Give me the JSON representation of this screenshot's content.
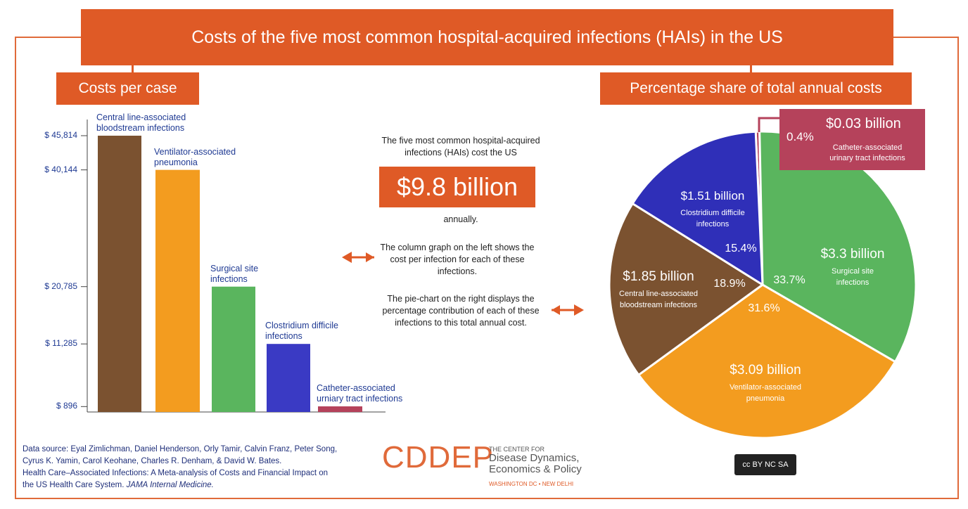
{
  "title": "Costs of the five most common hospital-acquired infections (HAIs) in the US",
  "left_section": "Costs per case",
  "right_section": "Percentage share of total annual costs",
  "middle": {
    "intro": "The five most common hospital-acquired infections (HAIs) cost the US",
    "big_value": "$9.8 billion",
    "annually": "annually.",
    "left_note": "The column graph on the left shows the cost per infection for each of these infections.",
    "right_note": "The pie-chart on the right displays the percentage contribution of each of these infections to this total annual cost."
  },
  "source": {
    "line1": "Data source: Eyal Zimlichman, Daniel Henderson, Orly Tamir, Calvin Franz, Peter Song,",
    "line2": "Cyrus K. Yamin, Carol Keohane, Charles R. Denham, & David W. Bates.",
    "line3": "Health Care–Associated Infections: A Meta-analysis of Costs and Financial Impact on",
    "line4_a": "the US Health Care System. ",
    "line4_b": "JAMA Internal Medicine."
  },
  "logo": {
    "main": "CDDEP",
    "sub1": "THE CENTER FOR",
    "sub2": "Disease Dynamics,",
    "sub3": "Economics & Policy",
    "sub4": "WASHINGTON DC • NEW DELHI"
  },
  "license": "cc BY NC SA",
  "chart_data": [
    {
      "type": "bar",
      "title": "Costs per case",
      "categories": [
        "Central line-associated bloodstream infections",
        "Ventilator-associated pneumonia",
        "Surgical site infections",
        "Clostridium difficile infections",
        "Catheter-associated urniary tract infections"
      ],
      "label_lines": [
        [
          "Central line-associated",
          "bloodstream infections"
        ],
        [
          "Ventilator-associated",
          "pneumonia"
        ],
        [
          "Surgical site",
          "infections"
        ],
        [
          "Clostridium difficile",
          "infections"
        ],
        [
          "Catheter-associated",
          "urniary tract infections"
        ]
      ],
      "values": [
        45814,
        40144,
        20785,
        11285,
        896
      ],
      "tick_labels": [
        "$ 45,814",
        "$ 40,144",
        "$ 20,785",
        "$ 11,285",
        "$ 896"
      ],
      "colors": [
        "#7b5230",
        "#f39c1f",
        "#5ab55e",
        "#3a3ac4",
        "#b5425b"
      ],
      "ylim": [
        0,
        45814
      ]
    },
    {
      "type": "pie",
      "title": "Percentage share of total annual costs",
      "slices": [
        {
          "label": "Catheter-associated urinary tract infections",
          "lines": [
            "Catheter-associated",
            "urinary tract infections"
          ],
          "value": 0.4,
          "pct": "0.4%",
          "amount": "$0.03 billion",
          "color": "#b5425b"
        },
        {
          "label": "Surgical site infections",
          "lines": [
            "Surgical site",
            "infections"
          ],
          "value": 33.7,
          "pct": "33.7%",
          "amount": "$3.3 billion",
          "color": "#5ab55e"
        },
        {
          "label": "Ventilator-associated pneumonia",
          "lines": [
            "Ventilator-associated",
            "pneumonia"
          ],
          "value": 31.6,
          "pct": "31.6%",
          "amount": "$3.09 billion",
          "color": "#f39c1f"
        },
        {
          "label": "Central line-associated bloodstream infections",
          "lines": [
            "Central line-associated",
            "bloodstream infections"
          ],
          "value": 18.9,
          "pct": "18.9%",
          "amount": "$1.85 billion",
          "color": "#7b5230"
        },
        {
          "label": "Clostridium difficile infections",
          "lines": [
            "Clostridium difficile",
            "infections"
          ],
          "value": 15.4,
          "pct": "15.4%",
          "amount": "$1.51 billion",
          "color": "#2f2fb8"
        }
      ]
    }
  ]
}
